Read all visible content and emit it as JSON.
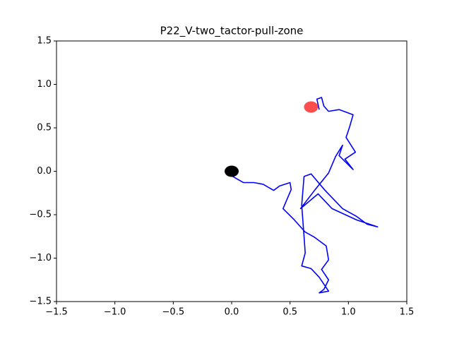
{
  "chart_data": {
    "type": "line",
    "title": "P22_V-two_tactor-pull-zone",
    "x": [
      0,
      -0.04,
      -0.01,
      0.01,
      0.1,
      0.19,
      0.27,
      0.36,
      0.41,
      0.5,
      0.51,
      0.44,
      0.53,
      0.63,
      0.71,
      0.81,
      0.83,
      0.77,
      0.83,
      0.79,
      0.75,
      0.83,
      0.75,
      0.68,
      0.6,
      0.63,
      0.62,
      0.6,
      0.62,
      0.68,
      0.8,
      0.95,
      1.07,
      1.16,
      1.25,
      1.07,
      0.86,
      0.74,
      0.59,
      0.71,
      0.83,
      0.89,
      0.95,
      0.92,
      1.04,
      0.97,
      1.06,
      0.98,
      1.01,
      1.04,
      0.92,
      0.83,
      0.79,
      0.77,
      0.73,
      0.75
    ],
    "y": [
      0,
      -0.03,
      0.02,
      -0.06,
      -0.13,
      -0.13,
      -0.15,
      -0.22,
      -0.17,
      -0.13,
      -0.21,
      -0.43,
      -0.55,
      -0.7,
      -0.76,
      -0.86,
      -1.02,
      -1.13,
      -1.25,
      -1.36,
      -1.4,
      -1.38,
      -1.22,
      -1.12,
      -1.09,
      -0.94,
      -0.75,
      -0.39,
      -0.06,
      -0.03,
      -0.22,
      -0.43,
      -0.52,
      -0.61,
      -0.64,
      -0.56,
      -0.43,
      -0.26,
      -0.43,
      -0.22,
      -0.02,
      0.17,
      0.3,
      0.18,
      0.02,
      0.14,
      0.22,
      0.39,
      0.51,
      0.65,
      0.71,
      0.69,
      0.75,
      0.85,
      0.83,
      0.71
    ],
    "color": "#0000ff",
    "markers": [
      {
        "x": 0,
        "y": 0,
        "color": "#000000"
      },
      {
        "x": 0.68,
        "y": 0.74,
        "color": "rgba(255,0,0,0.7)"
      }
    ],
    "xlim": [
      -1.5,
      1.5
    ],
    "ylim": [
      -1.5,
      1.5
    ],
    "xticks": [
      {
        "value": -1.5,
        "label": "−1.5"
      },
      {
        "value": -1.0,
        "label": "−1.0"
      },
      {
        "value": -0.5,
        "label": "−0.5"
      },
      {
        "value": 0,
        "label": "0.0"
      },
      0.5,
      {
        "value": 1.0,
        "label": "1.0"
      },
      1.5
    ],
    "yticks": [
      {
        "value": -1.5,
        "label": "−1.5"
      },
      {
        "value": -1.0,
        "label": "−1.0"
      },
      {
        "value": -0.5,
        "label": "−0.5"
      },
      {
        "value": 0,
        "label": "0.0"
      },
      0.5,
      {
        "value": 1.0,
        "label": "1.0"
      },
      1.5
    ]
  }
}
